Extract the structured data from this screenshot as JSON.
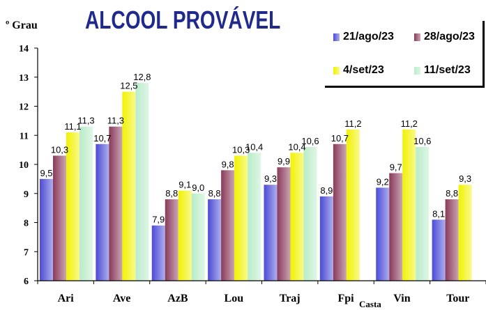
{
  "colors": {
    "title": "#1f2a8c",
    "series": [
      "#4b4bd6",
      "#8a3a5a",
      "#f2f200",
      "#b8ecc8"
    ]
  },
  "chart_data": {
    "type": "bar",
    "title": "ALCOOL PROVÁVEL",
    "ylabel": "º Grau",
    "xlabel": "",
    "ylim": [
      6,
      14
    ],
    "yticks": [
      6,
      7,
      8,
      9,
      10,
      11,
      12,
      13,
      14
    ],
    "grid": false,
    "legend_position": "top-right",
    "categories": [
      "Ari",
      "Ave",
      "AzB",
      "Lou",
      "Traj",
      "Fpi",
      "Vin",
      "Tour"
    ],
    "extra_label": "Casta",
    "series": [
      {
        "name": "21/ago/23",
        "values": [
          9.5,
          10.7,
          7.9,
          8.8,
          9.3,
          8.9,
          9.2,
          8.1
        ],
        "labels": [
          "9,5",
          "10,7",
          "7,9",
          "8,8",
          "9,3",
          "8,9",
          "9,2",
          "8,1"
        ]
      },
      {
        "name": "28/ago/23",
        "values": [
          10.3,
          11.3,
          8.8,
          9.8,
          9.9,
          10.7,
          9.7,
          8.8
        ],
        "labels": [
          "10,3",
          "11,3",
          "8,8",
          "9,8",
          "9,9",
          "10,7",
          "9,7",
          "8,8"
        ]
      },
      {
        "name": "4/set/23",
        "values": [
          11.1,
          12.5,
          9.1,
          10.3,
          10.4,
          11.2,
          11.2,
          9.3
        ],
        "labels": [
          "11,1",
          "12,5",
          "9,1",
          "10,3",
          "10,4",
          "11,2",
          "11,2",
          "9,3"
        ]
      },
      {
        "name": "11/set/23",
        "values": [
          11.3,
          12.8,
          9.0,
          10.4,
          10.6,
          null,
          10.6,
          null
        ],
        "labels": [
          "11,3",
          "12,8",
          "9,0",
          "10,4",
          "10,6",
          null,
          "10,6",
          null
        ]
      }
    ]
  }
}
